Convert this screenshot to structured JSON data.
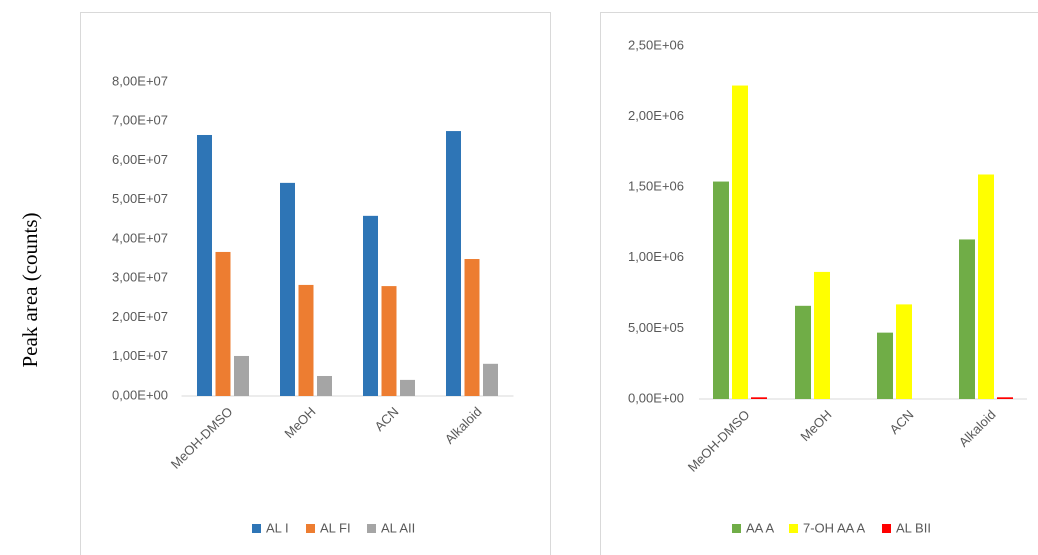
{
  "chart_data": [
    {
      "type": "bar",
      "ylabel": "Peak area (counts)",
      "categories": [
        "MeOH-DMSO",
        "MeOH",
        "ACN",
        "Alkaloid"
      ],
      "series": [
        {
          "name": "AL I",
          "color": "#2e75b6",
          "values": [
            66500000,
            54300000,
            45900000,
            67500000
          ]
        },
        {
          "name": "AL FI",
          "color": "#ed7d31",
          "values": [
            36700000,
            28300000,
            28000000,
            34900000
          ]
        },
        {
          "name": "AL AII",
          "color": "#a5a5a5",
          "values": [
            10200000,
            5100000,
            4100000,
            8200000
          ]
        }
      ],
      "ylim": [
        0,
        80000000
      ],
      "yticks": [
        {
          "value": 0,
          "label": "0,00E+00"
        },
        {
          "value": 10000000,
          "label": "1,00E+07"
        },
        {
          "value": 20000000,
          "label": "2,00E+07"
        },
        {
          "value": 30000000,
          "label": "3,00E+07"
        },
        {
          "value": 40000000,
          "label": "4,00E+07"
        },
        {
          "value": 50000000,
          "label": "5,00E+07"
        },
        {
          "value": 60000000,
          "label": "6,00E+07"
        },
        {
          "value": 70000000,
          "label": "7,00E+07"
        },
        {
          "value": 80000000,
          "label": "8,00E+07"
        }
      ],
      "legend": "bottom"
    },
    {
      "type": "bar",
      "categories": [
        "MeOH-DMSO",
        "MeOH",
        "ACN",
        "Alkaloid"
      ],
      "series": [
        {
          "name": "AA A",
          "color": "#70ad47",
          "values": [
            1540000,
            660000,
            470000,
            1130000
          ]
        },
        {
          "name": "7-OH AA A",
          "color": "#ffff00",
          "values": [
            2220000,
            900000,
            670000,
            1590000
          ]
        },
        {
          "name": "AL BII",
          "color": "#ff0000",
          "values": [
            12000,
            0,
            0,
            12000
          ]
        }
      ],
      "ylim": [
        0,
        2500000
      ],
      "yticks": [
        {
          "value": 0,
          "label": "0,00E+00"
        },
        {
          "value": 500000,
          "label": "5,00E+05"
        },
        {
          "value": 1000000,
          "label": "1,00E+06"
        },
        {
          "value": 1500000,
          "label": "1,50E+06"
        },
        {
          "value": 2000000,
          "label": "2,00E+06"
        },
        {
          "value": 2500000,
          "label": "2,50E+06"
        }
      ],
      "legend": "bottom"
    }
  ]
}
